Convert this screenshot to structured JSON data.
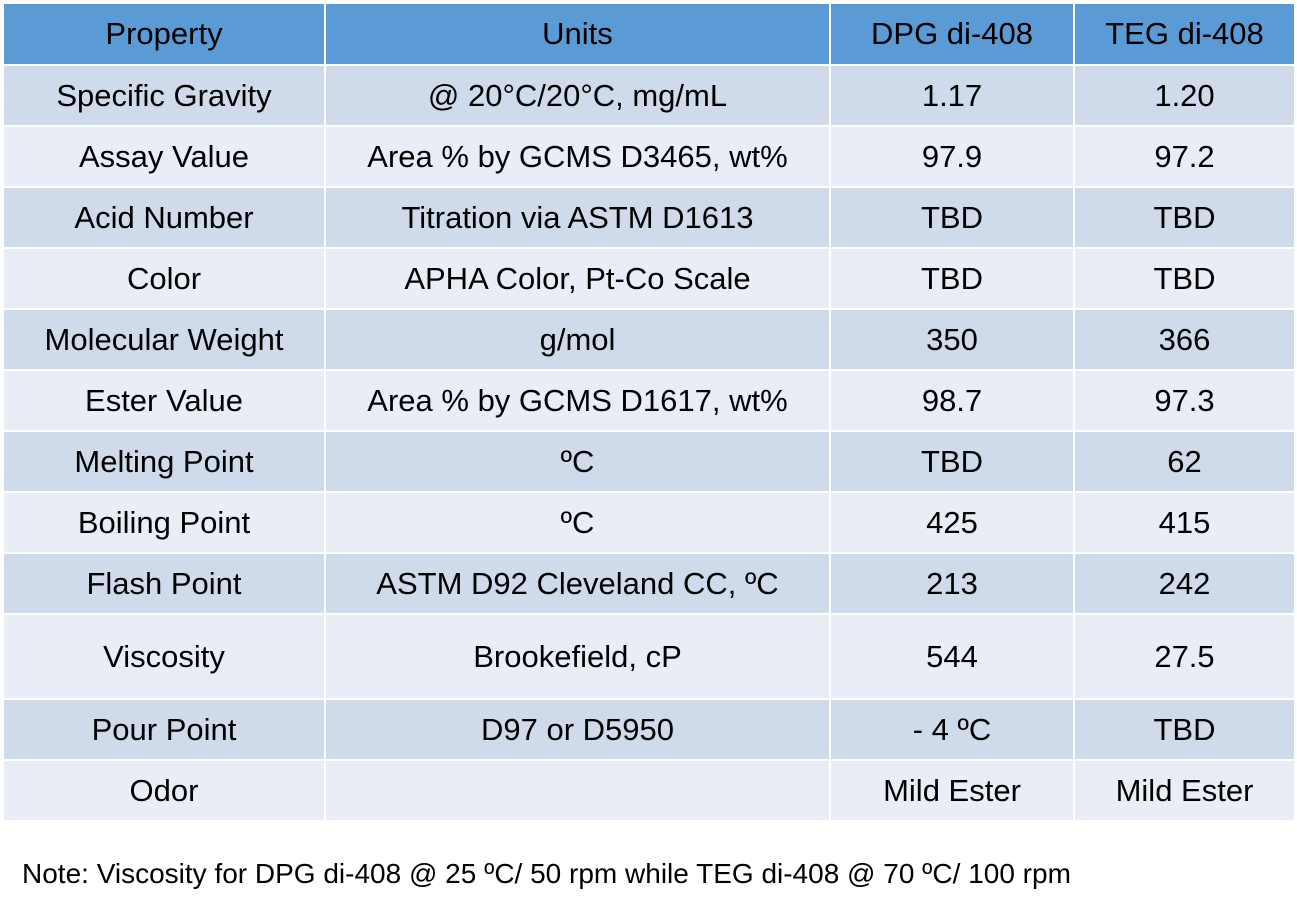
{
  "table": {
    "headers": [
      "Property",
      "Units",
      "DPG di-408",
      "TEG di-408"
    ],
    "rows": [
      [
        "Specific Gravity",
        "@ 20°C/20°C, mg/mL",
        "1.17",
        "1.20"
      ],
      [
        "Assay Value",
        "Area % by GCMS D3465, wt%",
        "97.9",
        "97.2"
      ],
      [
        "Acid Number",
        "Titration via ASTM D1613",
        "TBD",
        "TBD"
      ],
      [
        "Color",
        "APHA Color, Pt-Co Scale",
        "TBD",
        "TBD"
      ],
      [
        "Molecular Weight",
        "g/mol",
        "350",
        "366"
      ],
      [
        "Ester Value",
        "Area % by GCMS D1617, wt%",
        "98.7",
        "97.3"
      ],
      [
        "Melting Point",
        "ºC",
        "TBD",
        "62"
      ],
      [
        "Boiling Point",
        "ºC",
        "425",
        "415"
      ],
      [
        "Flash Point",
        "ASTM D92 Cleveland CC, ºC",
        "213",
        "242"
      ],
      [
        "Viscosity",
        "Brookefield, cP",
        "544",
        "27.5"
      ],
      [
        "Pour Point",
        "D97 or D5950",
        "- 4 ºC",
        "TBD"
      ],
      [
        "Odor",
        "",
        "Mild Ester",
        "Mild Ester"
      ]
    ]
  },
  "note": "Note:  Viscosity for DPG di-408 @ 25 ºC/ 50 rpm while TEG di-408 @ 70 ºC/ 100 rpm",
  "colors": {
    "header_bg": "#5b9bd5",
    "row_odd_bg": "#cfdaeb",
    "row_even_bg": "#e9eef6"
  }
}
